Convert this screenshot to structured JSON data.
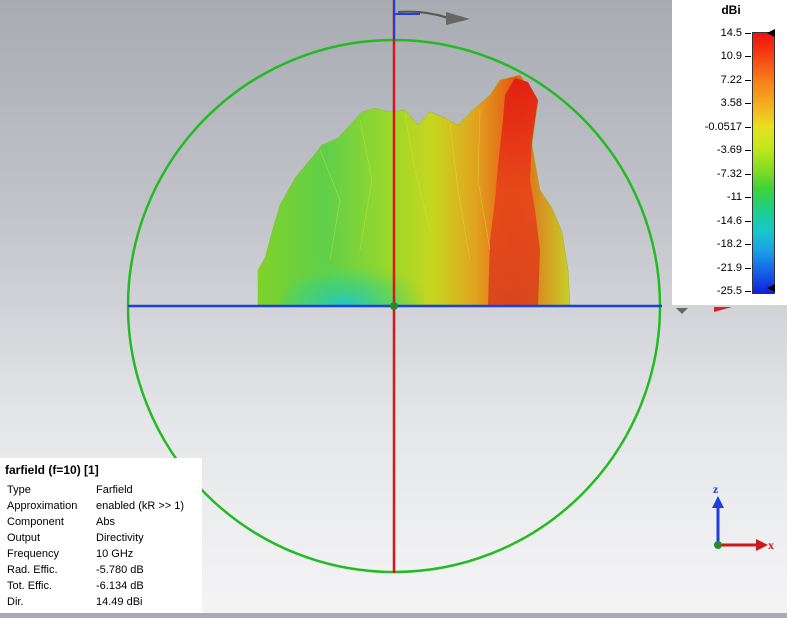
{
  "colorbar": {
    "unit": "dBi",
    "ticks": [
      "14.5",
      "10.9",
      "7.22",
      "3.58",
      "-0.0517",
      "-3.69",
      "-7.32",
      "-11",
      "-14.6",
      "-18.2",
      "-21.9",
      "-25.5"
    ]
  },
  "info_panel": {
    "title": "farfield (f=10) [1]",
    "rows": [
      {
        "key": "Type",
        "value": "Farfield"
      },
      {
        "key": "Approximation",
        "value": "enabled (kR >> 1)"
      },
      {
        "key": "Component",
        "value": "Abs"
      },
      {
        "key": "Output",
        "value": "Directivity"
      },
      {
        "key": "Frequency",
        "value": "10 GHz"
      },
      {
        "key": "Rad. Effic.",
        "value": "-5.780 dB"
      },
      {
        "key": "Tot. Effic.",
        "value": "-6.134 dB"
      },
      {
        "key": "Dir.",
        "value": "14.49 dBi"
      }
    ]
  },
  "triad": {
    "z_label": "z",
    "x_label": "x"
  },
  "colors": {
    "circle": "#22bb22",
    "horizontal_axis": "#1b3fe0",
    "vertical_axis": "#d81818",
    "background_top": "#a9abb3",
    "background_bottom": "#f4f4f5"
  }
}
